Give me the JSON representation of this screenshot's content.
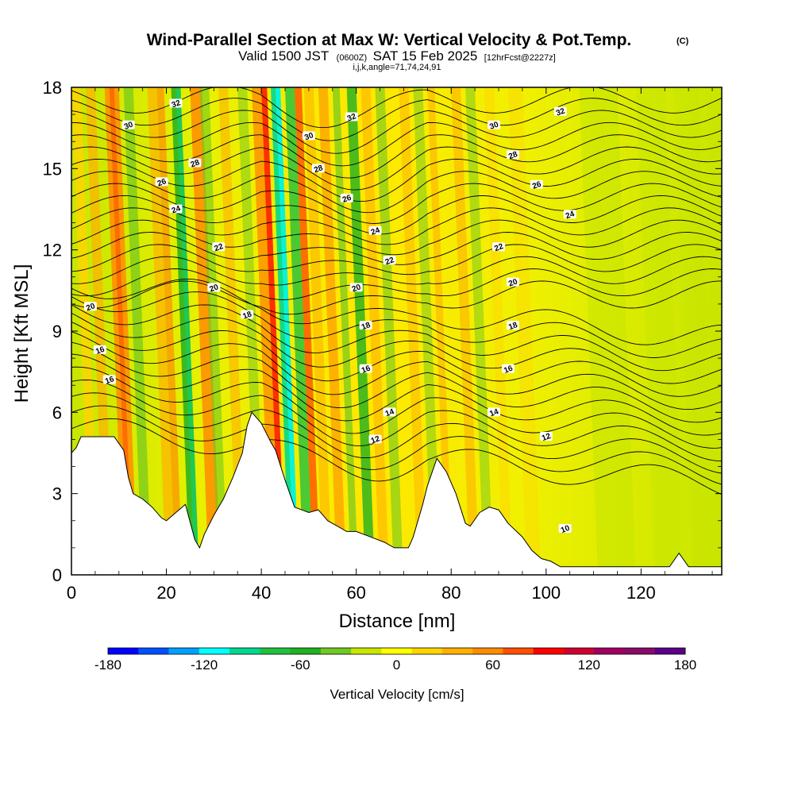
{
  "chart_data": {
    "type": "heatmap",
    "title": "Wind-Parallel Section at Max W: Vertical Velocity & Pot.Temp.",
    "title_mark": "(C)",
    "subtitle_prefix": "Valid 1500 JST",
    "subtitle_utc": "(0600Z)",
    "subtitle_date": "SAT 15 Feb 2025",
    "subtitle_fcst": "[12hrFcst@2227z]",
    "subtitle_line2": "i,j,k,angle=71,74,24,91",
    "xlabel": "Distance [nm]",
    "ylabel": "Height [Kft MSL]",
    "xlim": [
      0,
      137
    ],
    "ylim": [
      0,
      18
    ],
    "xticks": [
      0,
      20,
      40,
      60,
      80,
      100,
      120
    ],
    "yticks": [
      0,
      3,
      6,
      9,
      12,
      15,
      18
    ],
    "colorbar": {
      "title": "Vertical Velocity [cm/s]",
      "range": [
        -180,
        180
      ],
      "ticks": [
        -180,
        -120,
        -60,
        0,
        60,
        120,
        180
      ],
      "colors": [
        "#0000ff",
        "#0050ff",
        "#00a0ff",
        "#00ffff",
        "#00d890",
        "#20c040",
        "#20b020",
        "#70c820",
        "#c8e600",
        "#ffff00",
        "#ffd400",
        "#ffb000",
        "#ff8c00",
        "#ff5000",
        "#ff0000",
        "#d00030",
        "#a00060",
        "#8a0a6a",
        "#5a0088"
      ]
    },
    "contour_field": "Potential temperature",
    "contour_labels": [
      {
        "text": "32",
        "x": 22,
        "y": 17.4
      },
      {
        "text": "30",
        "x": 12,
        "y": 16.6
      },
      {
        "text": "32",
        "x": 59,
        "y": 16.9
      },
      {
        "text": "30",
        "x": 50,
        "y": 16.2
      },
      {
        "text": "30",
        "x": 89,
        "y": 16.6
      },
      {
        "text": "32",
        "x": 103,
        "y": 17.1
      },
      {
        "text": "28",
        "x": 26,
        "y": 15.2
      },
      {
        "text": "28",
        "x": 52,
        "y": 15.0
      },
      {
        "text": "28",
        "x": 93,
        "y": 15.5
      },
      {
        "text": "26",
        "x": 19,
        "y": 14.5
      },
      {
        "text": "26",
        "x": 58,
        "y": 13.9
      },
      {
        "text": "26",
        "x": 98,
        "y": 14.4
      },
      {
        "text": "24",
        "x": 22,
        "y": 13.5
      },
      {
        "text": "24",
        "x": 64,
        "y": 12.7
      },
      {
        "text": "24",
        "x": 105,
        "y": 13.3
      },
      {
        "text": "22",
        "x": 31,
        "y": 12.1
      },
      {
        "text": "22",
        "x": 67,
        "y": 11.6
      },
      {
        "text": "22",
        "x": 90,
        "y": 12.1
      },
      {
        "text": "20",
        "x": 4,
        "y": 9.9
      },
      {
        "text": "20",
        "x": 30,
        "y": 10.6
      },
      {
        "text": "20",
        "x": 60,
        "y": 10.6
      },
      {
        "text": "20",
        "x": 93,
        "y": 10.8
      },
      {
        "text": "18",
        "x": 37,
        "y": 9.6
      },
      {
        "text": "18",
        "x": 62,
        "y": 9.2
      },
      {
        "text": "18",
        "x": 93,
        "y": 9.2
      },
      {
        "text": "16",
        "x": 6,
        "y": 8.3
      },
      {
        "text": "16",
        "x": 62,
        "y": 7.6
      },
      {
        "text": "16",
        "x": 92,
        "y": 7.6
      },
      {
        "text": "16",
        "x": 8,
        "y": 7.2
      },
      {
        "text": "14",
        "x": 67,
        "y": 6.0
      },
      {
        "text": "14",
        "x": 89,
        "y": 6.0
      },
      {
        "text": "12",
        "x": 64,
        "y": 5.0
      },
      {
        "text": "12",
        "x": 100,
        "y": 5.1
      },
      {
        "text": "10",
        "x": 104,
        "y": 1.7
      }
    ]
  }
}
